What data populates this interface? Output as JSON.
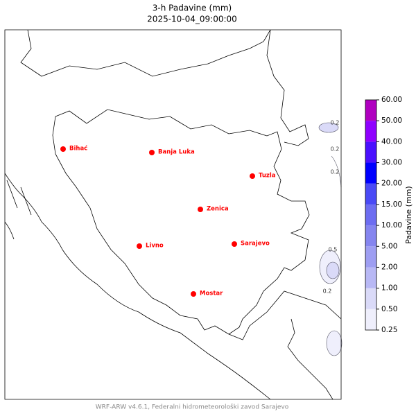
{
  "header": {
    "title": "3-h Padavine (mm)",
    "subtitle": "2025-10-04_09:00:00"
  },
  "cities": [
    {
      "name": "Bihać"
    },
    {
      "name": "Banja Luka"
    },
    {
      "name": "Tuzla"
    },
    {
      "name": "Zenica"
    },
    {
      "name": "Livno"
    },
    {
      "name": "Sarajevo"
    },
    {
      "name": "Mostar"
    }
  ],
  "contour_labels": [
    0.2,
    0.2,
    0.2,
    0.5,
    0.2
  ],
  "colorbar": {
    "label": "Padavine (mm)",
    "ticks": [
      {
        "value": 0.25,
        "label": "0.25"
      },
      {
        "value": 0.5,
        "label": "0.50"
      },
      {
        "value": 1,
        "label": "1.00"
      },
      {
        "value": 2,
        "label": "2.00"
      },
      {
        "value": 5,
        "label": "5.00"
      },
      {
        "value": 10,
        "label": "10.00"
      },
      {
        "value": 15,
        "label": "15.00"
      },
      {
        "value": 20,
        "label": "20.00"
      },
      {
        "value": 30,
        "label": "30.00"
      },
      {
        "value": 40,
        "label": "40.00"
      },
      {
        "value": 50,
        "label": "50.00"
      },
      {
        "value": 60,
        "label": "60.00"
      }
    ],
    "colors": [
      "#efeffc",
      "#dadaf8",
      "#b8b8f5",
      "#9e9ef2",
      "#8585ef",
      "#6d6df1",
      "#4a4af6",
      "#0000ff",
      "#4a10ff",
      "#8f00ff",
      "#b000c0"
    ]
  },
  "footer": "WRF-ARW v4.6.1, Federalni hidrometeorološki zavod Sarajevo"
}
